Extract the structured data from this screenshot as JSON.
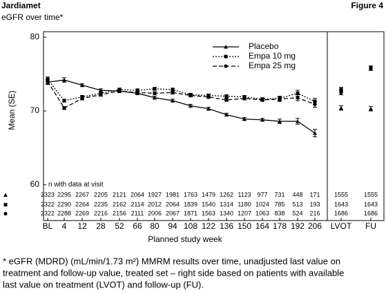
{
  "header": {
    "title": "Jardiamet",
    "subtitle": "eGFR over time*",
    "figure": "Figure 4"
  },
  "footnote": [
    "* eGFR (MDRD) (mL/min/1.73 m²) MMRM results over time, unadjusted last value on",
    "treatment and follow-up value, treated set – right side based on patients with available",
    "last value on treatment (LVOT) and follow-up (FU)."
  ],
  "chart_data": [
    {
      "type": "line",
      "ylabel": "Mean (SE)",
      "xlabel": "Planned study week",
      "n_label": "n with data at visit",
      "ylim": [
        60,
        80
      ],
      "yticks": [
        60,
        70,
        80
      ],
      "legend": "top-right",
      "categories": [
        "BL",
        "4",
        "12",
        "28",
        "52",
        "66",
        "80",
        "94",
        "108",
        "122",
        "136",
        "150",
        "164",
        "178",
        "192",
        "206"
      ],
      "series": [
        {
          "name": "Placebo",
          "color": "#000000",
          "marker": "triangle",
          "dash": "solid",
          "values": [
            73.9,
            74.2,
            73.5,
            72.8,
            72.7,
            72.4,
            71.8,
            71.4,
            70.7,
            70.3,
            69.5,
            68.9,
            68.8,
            68.6,
            68.6,
            67.0
          ],
          "errors": [
            0.3,
            0.3,
            0.2,
            0.2,
            0.2,
            0.2,
            0.2,
            0.2,
            0.2,
            0.2,
            0.2,
            0.2,
            0.2,
            0.3,
            0.4,
            0.5
          ],
          "n": [
            2323,
            2295,
            2267,
            2205,
            2121,
            2064,
            1927,
            1981,
            1763,
            1479,
            1262,
            1123,
            977,
            731,
            448,
            171
          ]
        },
        {
          "name": "Empa 10 mg",
          "color": "#000000",
          "marker": "square",
          "dash": "dotted",
          "values": [
            74.3,
            71.4,
            71.9,
            72.4,
            72.9,
            72.8,
            73.0,
            72.9,
            72.2,
            72.1,
            72.0,
            71.9,
            71.6,
            71.7,
            72.4,
            71.3
          ],
          "errors": [
            0.3,
            0.2,
            0.2,
            0.2,
            0.2,
            0.2,
            0.2,
            0.2,
            0.2,
            0.2,
            0.2,
            0.2,
            0.2,
            0.3,
            0.4,
            0.4
          ],
          "n": [
            2322,
            2290,
            2264,
            2235,
            2162,
            2114,
            2012,
            2064,
            1839,
            1540,
            1314,
            1180,
            1024,
            785,
            513,
            193
          ]
        },
        {
          "name": "Empa 25 mg",
          "color": "#000000",
          "marker": "circle",
          "dash": "dashed",
          "values": [
            74.0,
            70.4,
            71.7,
            72.2,
            72.7,
            72.5,
            72.4,
            72.5,
            72.1,
            71.9,
            71.5,
            71.7,
            71.5,
            71.6,
            71.8,
            70.9
          ],
          "errors": [
            0.3,
            0.2,
            0.2,
            0.2,
            0.2,
            0.2,
            0.2,
            0.2,
            0.2,
            0.2,
            0.2,
            0.2,
            0.2,
            0.3,
            0.4,
            0.4
          ],
          "n": [
            2322,
            2288,
            2269,
            2216,
            2156,
            2111,
            2006,
            2067,
            1871,
            1563,
            1340,
            1207,
            1063,
            838,
            524,
            216
          ]
        }
      ]
    },
    {
      "type": "errorbar",
      "categories": [
        "LVOT",
        "FU"
      ],
      "series": [
        {
          "values": [
            70.4,
            70.3
          ],
          "errors": [
            0.3,
            0.3
          ],
          "n": [
            1555,
            1555
          ]
        },
        {
          "values": [
            72.9,
            75.8
          ],
          "errors": [
            0.3,
            0.3
          ],
          "n": [
            1643,
            1643
          ]
        },
        {
          "values": [
            72.5,
            75.8
          ],
          "errors": [
            0.3,
            0.3
          ],
          "n": [
            1686,
            1686
          ]
        }
      ]
    }
  ]
}
